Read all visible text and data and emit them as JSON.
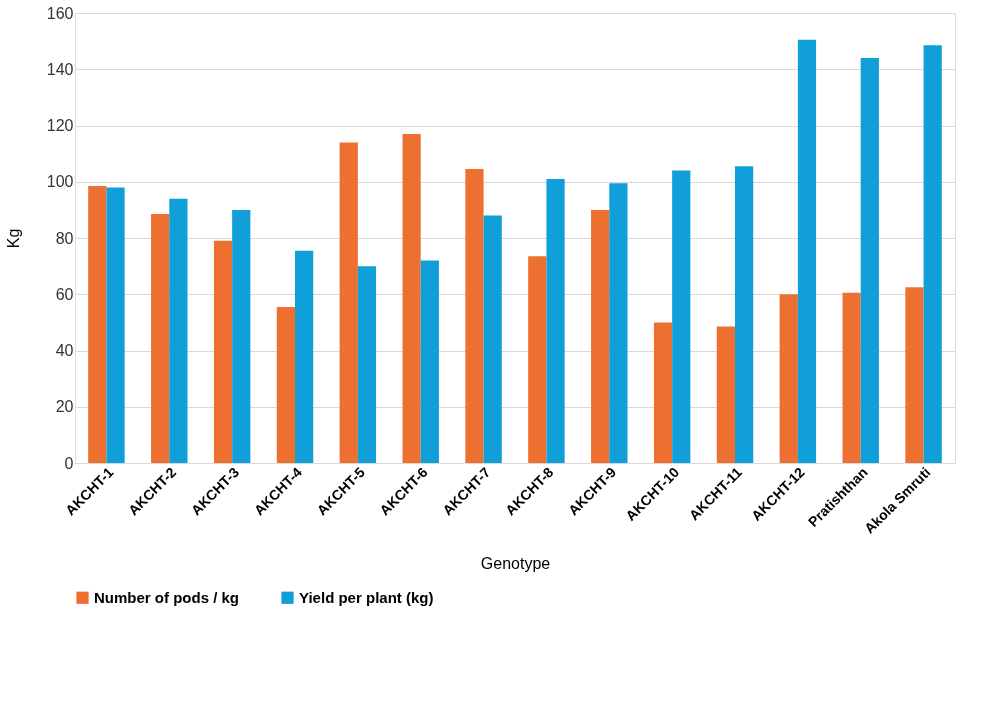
{
  "chart_data": {
    "type": "bar",
    "xlabel": "Genotype",
    "ylabel": "Kg",
    "categories": [
      "AKCHT-1",
      "AKCHT-2",
      "AKCHT-3",
      "AKCHT-4",
      "AKCHT-5",
      "AKCHT-6",
      "AKCHT-7",
      "AKCHT-8",
      "AKCHT-9",
      "AKCHT-10",
      "AKCHT-11",
      "AKCHT-12",
      "Pratishthan",
      "Akola Smruti"
    ],
    "series": [
      {
        "name": "Number of pods / kg",
        "color": "#ed7031",
        "values": [
          98.5,
          88.5,
          79,
          55.5,
          114,
          117,
          104.5,
          73.5,
          90,
          50,
          48.5,
          60,
          60.5,
          62.5
        ]
      },
      {
        "name": "Yield per plant (kg)",
        "color": "#109fd8",
        "values": [
          98,
          94,
          90,
          75.5,
          70,
          72,
          88,
          101,
          99.5,
          104,
          105.5,
          150.5,
          144,
          148.5
        ]
      }
    ],
    "ylim": [
      0,
      160
    ],
    "yticks": [
      0,
      20,
      40,
      60,
      80,
      100,
      120,
      140,
      160
    ],
    "grid": "y",
    "legend": "bottom"
  }
}
